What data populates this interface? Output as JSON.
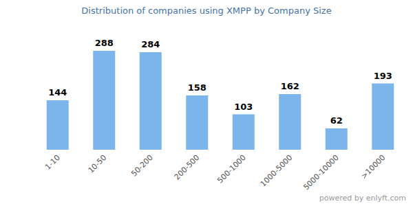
{
  "chart_data": {
    "type": "bar",
    "title": "Distribution of companies using XMPP by Company Size",
    "categories": [
      "1-10",
      "10-50",
      "50-200",
      "200-500",
      "500-1000",
      "1000-5000",
      "5000-10000",
      ">10000"
    ],
    "values": [
      144,
      288,
      284,
      158,
      103,
      162,
      62,
      193
    ],
    "color": "#7cb5ec",
    "ylim": [
      0,
      300
    ],
    "data_labels": true,
    "tick_labels": "x",
    "source": "powered by enlyft.com"
  }
}
